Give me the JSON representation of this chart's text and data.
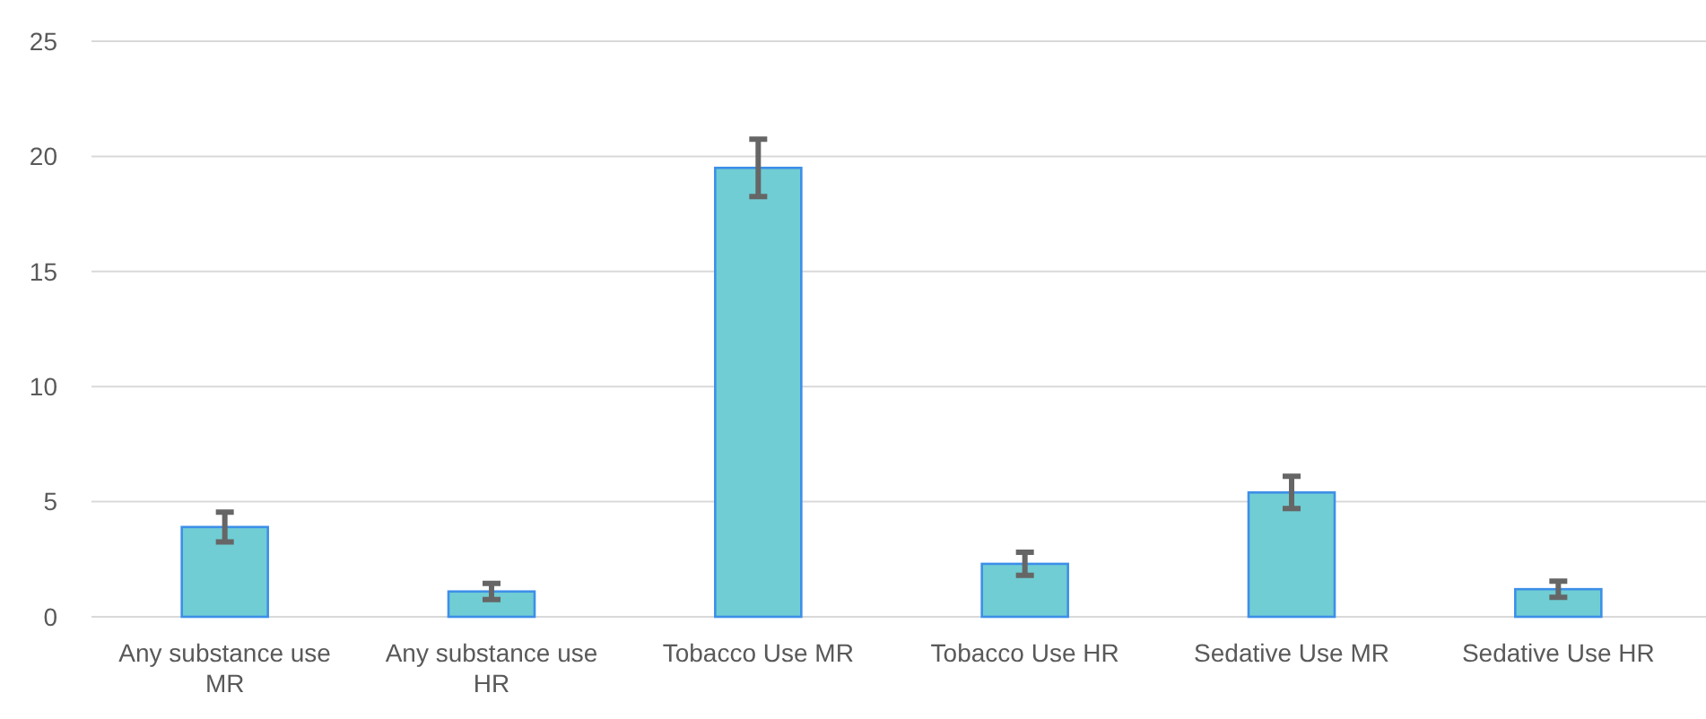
{
  "chart_data": {
    "type": "bar",
    "categories": [
      "Any substance use MR",
      "Any substance use HR",
      "Tobacco Use MR",
      "Tobacco Use HR",
      "Sedative Use MR",
      "Sedative Use HR"
    ],
    "values": [
      3.9,
      1.1,
      19.5,
      2.3,
      5.4,
      1.2
    ],
    "errors": [
      0.65,
      0.35,
      1.25,
      0.5,
      0.7,
      0.35
    ],
    "color": "#70cdd3",
    "ylim": [
      0,
      25
    ],
    "yticks": [
      0,
      5,
      10,
      15,
      20,
      25
    ],
    "grid": "y"
  }
}
